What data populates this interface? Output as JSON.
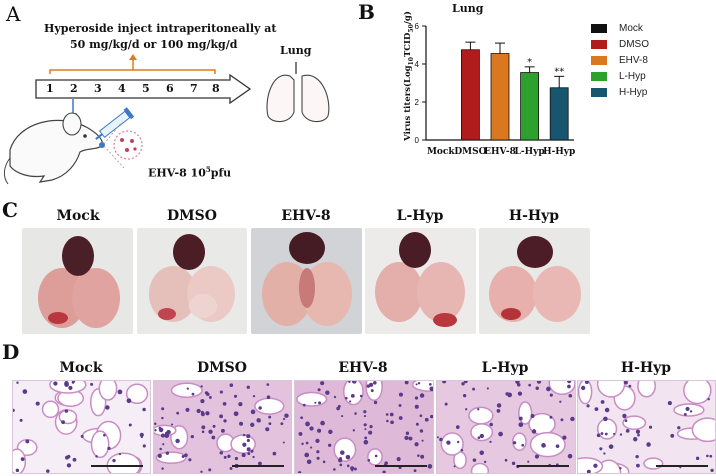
{
  "panels": {
    "a": "A",
    "b": "B",
    "c": "C",
    "d": "D"
  },
  "panel_a": {
    "protocol_line1": "Hyperoside inject intraperitoneally at",
    "protocol_line2": "50 mg/kg/d or 100 mg/kg/d",
    "days": [
      "1",
      "2",
      "3",
      "4",
      "5",
      "6",
      "7",
      "8"
    ],
    "organ": "Lung",
    "virus_main": "EHV-8 10",
    "virus_sup": "5",
    "virus_unit": "pfu"
  },
  "chart_data": {
    "type": "bar",
    "title": "Lung",
    "ylabel_main": "Virus titers(Log",
    "ylabel_sub1": "10",
    "ylabel_mid": "TCID",
    "ylabel_sub2": "50",
    "ylabel_end": "/g)",
    "categories": [
      "Mock",
      "DMSO",
      "EHV-8",
      "L-Hyp",
      "H-Hyp"
    ],
    "values": [
      0,
      4.75,
      4.55,
      3.55,
      2.75
    ],
    "errors": [
      0,
      0.4,
      0.55,
      0.3,
      0.6
    ],
    "significance": [
      "",
      "",
      "",
      "*",
      "**"
    ],
    "ylim": [
      0,
      6
    ],
    "yticks": [
      "0",
      "2",
      "4",
      "6"
    ],
    "colors": [
      "#111111",
      "#b01c1c",
      "#d9781f",
      "#2ea02e",
      "#17566e"
    ],
    "legend": [
      "Mock",
      "DMSO",
      "EHV-8",
      "L-Hyp",
      "H-Hyp"
    ],
    "legend_position": "right"
  },
  "panel_c": {
    "labels": [
      "Mock",
      "DMSO",
      "EHV-8",
      "L-Hyp",
      "H-Hyp"
    ]
  },
  "panel_d": {
    "labels": [
      "Mock",
      "DMSO",
      "EHV-8",
      "L-Hyp",
      "H-Hyp"
    ]
  }
}
